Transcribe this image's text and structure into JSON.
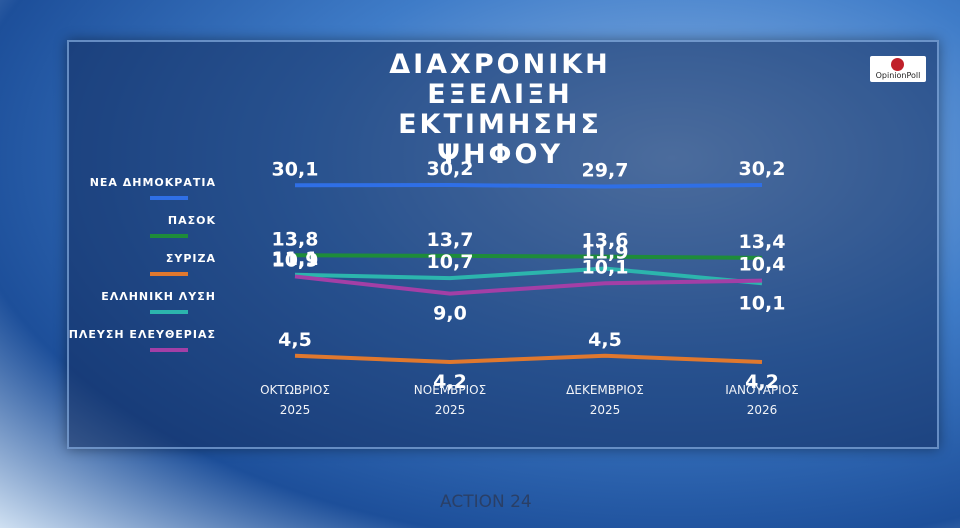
{
  "chart_data": {
    "type": "line",
    "title": "ΔΙΑΧΡΟΝΙΚΗ ΕΞΕΛΙΞΗ ΕΚΤΙΜΗΣΗΣ ΨΗΦΟΥ",
    "categories": [
      "ΟΚΤΩΒΡΙΟΣ 2025",
      "ΝΟΕΜΒΡΙΟΣ 2025",
      "ΔΕΚΕΜΒΡΙΟΣ 2025",
      "ΙΑΝΟΥΑΡΙΟΣ 2026"
    ],
    "series": [
      {
        "name": "ΝΕΑ ΔΗΜΟΚΡΑΤΙΑ",
        "color": "#2f6fe6",
        "values": [
          30.1,
          30.2,
          29.7,
          30.2
        ],
        "value_labels": [
          "30,1",
          "30,2",
          "29,7",
          "30,2"
        ]
      },
      {
        "name": "ΠΑΣΟΚ",
        "color": "#1e8c3a",
        "values": [
          13.8,
          13.7,
          13.6,
          13.4
        ],
        "value_labels": [
          "13,8",
          "13,7",
          "13,6",
          "13,4"
        ]
      },
      {
        "name": "ΣΥΡΙΖΑ",
        "color": "#e0782e",
        "values": [
          4.5,
          4.2,
          4.5,
          4.2
        ],
        "value_labels": [
          "4,5",
          "4,2",
          "4,5",
          "4,2"
        ]
      },
      {
        "name": "ΕΛΛΗΝΙΚΗ ΛΥΣΗ",
        "color": "#2cb5ad",
        "values": [
          11.1,
          10.7,
          11.9,
          10.1
        ],
        "value_labels": [
          "11,1",
          "10,7",
          "11,9",
          "10,1"
        ]
      },
      {
        "name": "ΠΛΕΥΣΗ ΕΛΕΥΘΕΡΙΑΣ",
        "color": "#a33fa6",
        "values": [
          10.9,
          9.0,
          10.1,
          10.4
        ],
        "value_labels": [
          "10,9",
          "9,0",
          "10,1",
          "10,4"
        ]
      }
    ]
  },
  "branding": {
    "pollster": "OpinionPoll",
    "channel": "ACTION 24"
  }
}
